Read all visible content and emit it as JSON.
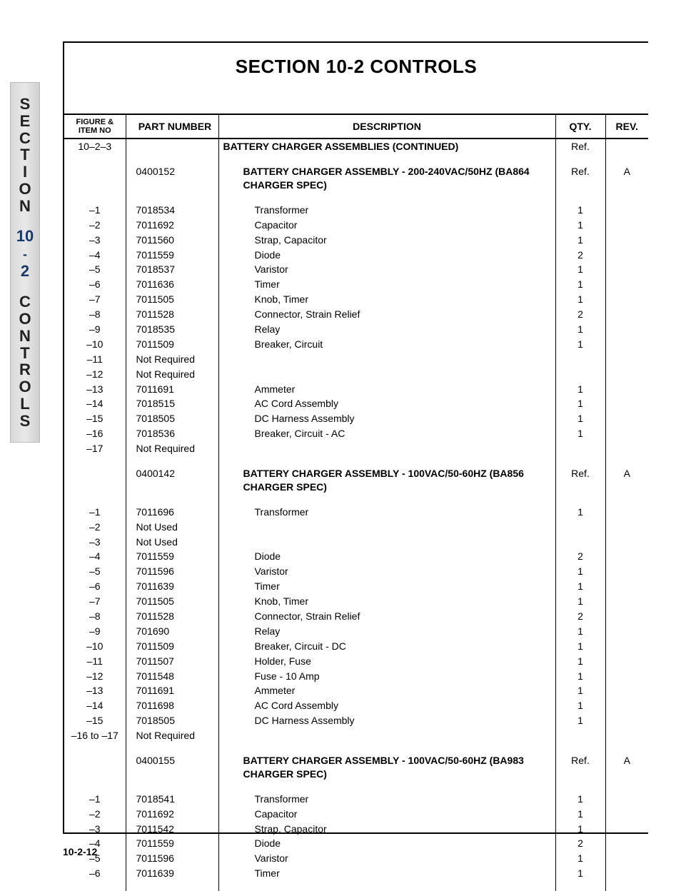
{
  "side_tab": {
    "word1": [
      "S",
      "E",
      "C",
      "T",
      "I",
      "O",
      "N"
    ],
    "num": "10",
    "dash": "-",
    "num2": "2",
    "word2": [
      "C",
      "O",
      "N",
      "T",
      "R",
      "O",
      "L",
      "S"
    ]
  },
  "title": "SECTION 10-2 CONTROLS",
  "headers": {
    "item": "FIGURE & ITEM NO",
    "part": "PART NUMBER",
    "desc": "DESCRIPTION",
    "qty": "QTY.",
    "rev": "REV."
  },
  "groups": [
    {
      "header_row": {
        "item": "10–2–3",
        "part": "",
        "desc": "BATTERY CHARGER ASSEMBLIES (CONTINUED)",
        "qty": "Ref.",
        "rev": ""
      },
      "assembly": {
        "item": "",
        "part": "0400152",
        "desc": "BATTERY CHARGER ASSEMBLY - 200-240VAC/50HZ (BA864 CHARGER SPEC)",
        "qty": "Ref.",
        "rev": "A"
      },
      "rows": [
        {
          "item": "–1",
          "part": "7018534",
          "desc": "Transformer",
          "qty": "1",
          "rev": ""
        },
        {
          "item": "–2",
          "part": "7011692",
          "desc": "Capacitor",
          "qty": "1",
          "rev": ""
        },
        {
          "item": "–3",
          "part": "7011560",
          "desc": "Strap, Capacitor",
          "qty": "1",
          "rev": ""
        },
        {
          "item": "–4",
          "part": "7011559",
          "desc": "Diode",
          "qty": "2",
          "rev": ""
        },
        {
          "item": "–5",
          "part": "7018537",
          "desc": "Varistor",
          "qty": "1",
          "rev": ""
        },
        {
          "item": "–6",
          "part": "7011636",
          "desc": "Timer",
          "qty": "1",
          "rev": ""
        },
        {
          "item": "–7",
          "part": "7011505",
          "desc": "Knob, Timer",
          "qty": "1",
          "rev": ""
        },
        {
          "item": "–8",
          "part": "7011528",
          "desc": "Connector, Strain Relief",
          "qty": "2",
          "rev": ""
        },
        {
          "item": "–9",
          "part": "7018535",
          "desc": "Relay",
          "qty": "1",
          "rev": ""
        },
        {
          "item": "–10",
          "part": "7011509",
          "desc": "Breaker, Circuit",
          "qty": "1",
          "rev": ""
        },
        {
          "item": "–11",
          "part": "Not Required",
          "desc": "",
          "qty": "",
          "rev": ""
        },
        {
          "item": "–12",
          "part": "Not Required",
          "desc": "",
          "qty": "",
          "rev": ""
        },
        {
          "item": "–13",
          "part": "7011691",
          "desc": "Ammeter",
          "qty": "1",
          "rev": ""
        },
        {
          "item": "–14",
          "part": "7018515",
          "desc": "AC Cord Assembly",
          "qty": "1",
          "rev": ""
        },
        {
          "item": "–15",
          "part": "7018505",
          "desc": "DC Harness Assembly",
          "qty": "1",
          "rev": ""
        },
        {
          "item": "–16",
          "part": "7018536",
          "desc": "Breaker, Circuit - AC",
          "qty": "1",
          "rev": ""
        },
        {
          "item": "–17",
          "part": "Not Required",
          "desc": "",
          "qty": "",
          "rev": ""
        }
      ]
    },
    {
      "assembly": {
        "item": "",
        "part": "0400142",
        "desc": "BATTERY CHARGER ASSEMBLY - 100VAC/50-60HZ (BA856 CHARGER SPEC)",
        "qty": "Ref.",
        "rev": "A"
      },
      "rows": [
        {
          "item": "–1",
          "part": "7011696",
          "desc": "Transformer",
          "qty": "1",
          "rev": ""
        },
        {
          "item": "–2",
          "part": "Not Used",
          "desc": "",
          "qty": "",
          "rev": ""
        },
        {
          "item": "–3",
          "part": "Not Used",
          "desc": "",
          "qty": "",
          "rev": ""
        },
        {
          "item": "–4",
          "part": "7011559",
          "desc": "Diode",
          "qty": "2",
          "rev": ""
        },
        {
          "item": "–5",
          "part": "7011596",
          "desc": "Varistor",
          "qty": "1",
          "rev": ""
        },
        {
          "item": "–6",
          "part": "7011639",
          "desc": "Timer",
          "qty": "1",
          "rev": ""
        },
        {
          "item": "–7",
          "part": "7011505",
          "desc": "Knob, Timer",
          "qty": "1",
          "rev": ""
        },
        {
          "item": "–8",
          "part": "7011528",
          "desc": "Connector, Strain Relief",
          "qty": "2",
          "rev": ""
        },
        {
          "item": "–9",
          "part": "701690",
          "desc": "Relay",
          "qty": "1",
          "rev": ""
        },
        {
          "item": "–10",
          "part": "7011509",
          "desc": "Breaker, Circuit - DC",
          "qty": "1",
          "rev": ""
        },
        {
          "item": "–11",
          "part": "7011507",
          "desc": "Holder, Fuse",
          "qty": "1",
          "rev": ""
        },
        {
          "item": "–12",
          "part": "7011548",
          "desc": "Fuse - 10 Amp",
          "qty": "1",
          "rev": ""
        },
        {
          "item": "–13",
          "part": "7011691",
          "desc": "Ammeter",
          "qty": "1",
          "rev": ""
        },
        {
          "item": "–14",
          "part": "7011698",
          "desc": "AC Cord Assembly",
          "qty": "1",
          "rev": ""
        },
        {
          "item": "–15",
          "part": "7018505",
          "desc": "DC Harness Assembly",
          "qty": "1",
          "rev": ""
        },
        {
          "item": "–16 to –17",
          "part": "Not Required",
          "desc": "",
          "qty": "",
          "rev": ""
        }
      ]
    },
    {
      "assembly": {
        "item": "",
        "part": "0400155",
        "desc": "BATTERY CHARGER ASSEMBLY - 100VAC/50-60HZ (BA983 CHARGER SPEC)",
        "qty": "Ref.",
        "rev": "A"
      },
      "rows": [
        {
          "item": "–1",
          "part": "7018541",
          "desc": "Transformer",
          "qty": "1",
          "rev": ""
        },
        {
          "item": "–2",
          "part": "7011692",
          "desc": "Capacitor",
          "qty": "1",
          "rev": ""
        },
        {
          "item": "–3",
          "part": "7011542",
          "desc": "Strap, Capacitor",
          "qty": "1",
          "rev": ""
        },
        {
          "item": "–4",
          "part": "7011559",
          "desc": "Diode",
          "qty": "2",
          "rev": ""
        },
        {
          "item": "–5",
          "part": "7011596",
          "desc": "Varistor",
          "qty": "1",
          "rev": ""
        },
        {
          "item": "–6",
          "part": "7011639",
          "desc": "Timer",
          "qty": "1",
          "rev": ""
        }
      ]
    }
  ],
  "page_number": "10-2-12"
}
